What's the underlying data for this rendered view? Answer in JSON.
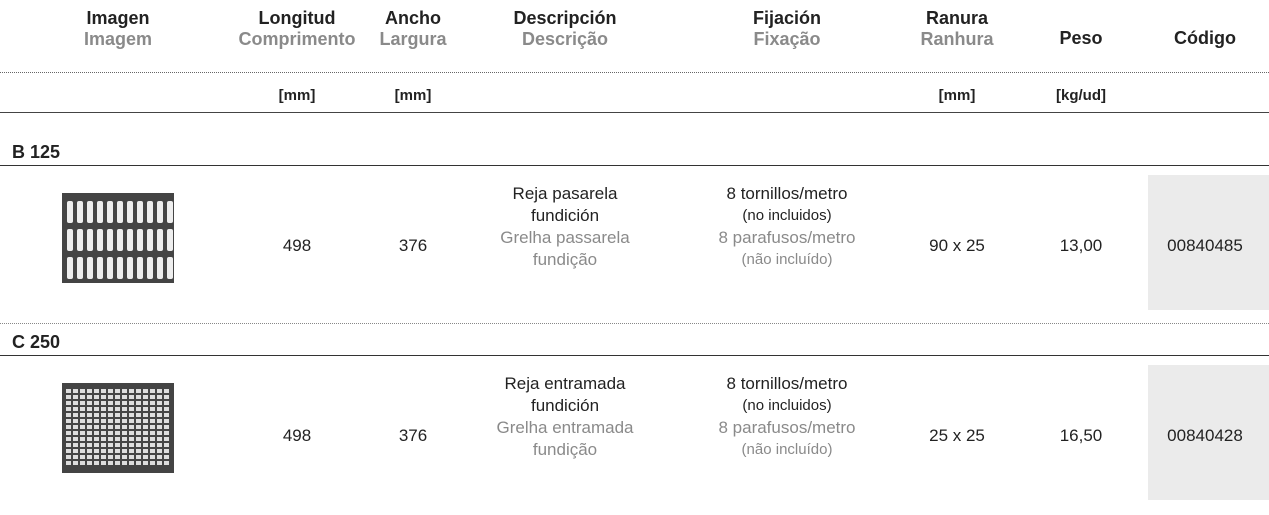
{
  "table": {
    "columns": [
      {
        "es": "Imagen",
        "pt": "Imagem"
      },
      {
        "es": "Longitud",
        "pt": "Comprimento",
        "unit": "[mm]"
      },
      {
        "es": "Ancho",
        "pt": "Largura",
        "unit": "[mm]"
      },
      {
        "es": "Descripción",
        "pt": "Descrição"
      },
      {
        "es": "Fijación",
        "pt": "Fixação"
      },
      {
        "es": "Ranura",
        "pt": "Ranhura",
        "unit": "[mm]"
      },
      {
        "es": "Peso",
        "unit": "[kg/ud]"
      },
      {
        "es": "Código"
      }
    ],
    "sections": [
      {
        "label": "B 125",
        "rows": [
          {
            "length": "498",
            "width": "376",
            "desc_es": "Reja pasarela fundición",
            "desc_pt": "Grelha passarela fundição",
            "fix_es": "8 tornillos/metro",
            "fix_es_note": "(no incluidos)",
            "fix_pt": "8 parafusos/metro",
            "fix_pt_note": "(não incluído)",
            "slot": "90 x 25",
            "weight": "13,00",
            "code": "00840485"
          }
        ]
      },
      {
        "label": "C 250",
        "rows": [
          {
            "length": "498",
            "width": "376",
            "desc_es": "Reja entramada fundición",
            "desc_pt": "Grelha entramada fundição",
            "fix_es": "8 tornillos/metro",
            "fix_es_note": "(no incluidos)",
            "fix_pt": "8 parafusos/metro",
            "fix_pt_note": "(não incluído)",
            "slot": "25 x 25",
            "weight": "16,50",
            "code": "00840428"
          }
        ]
      }
    ]
  }
}
